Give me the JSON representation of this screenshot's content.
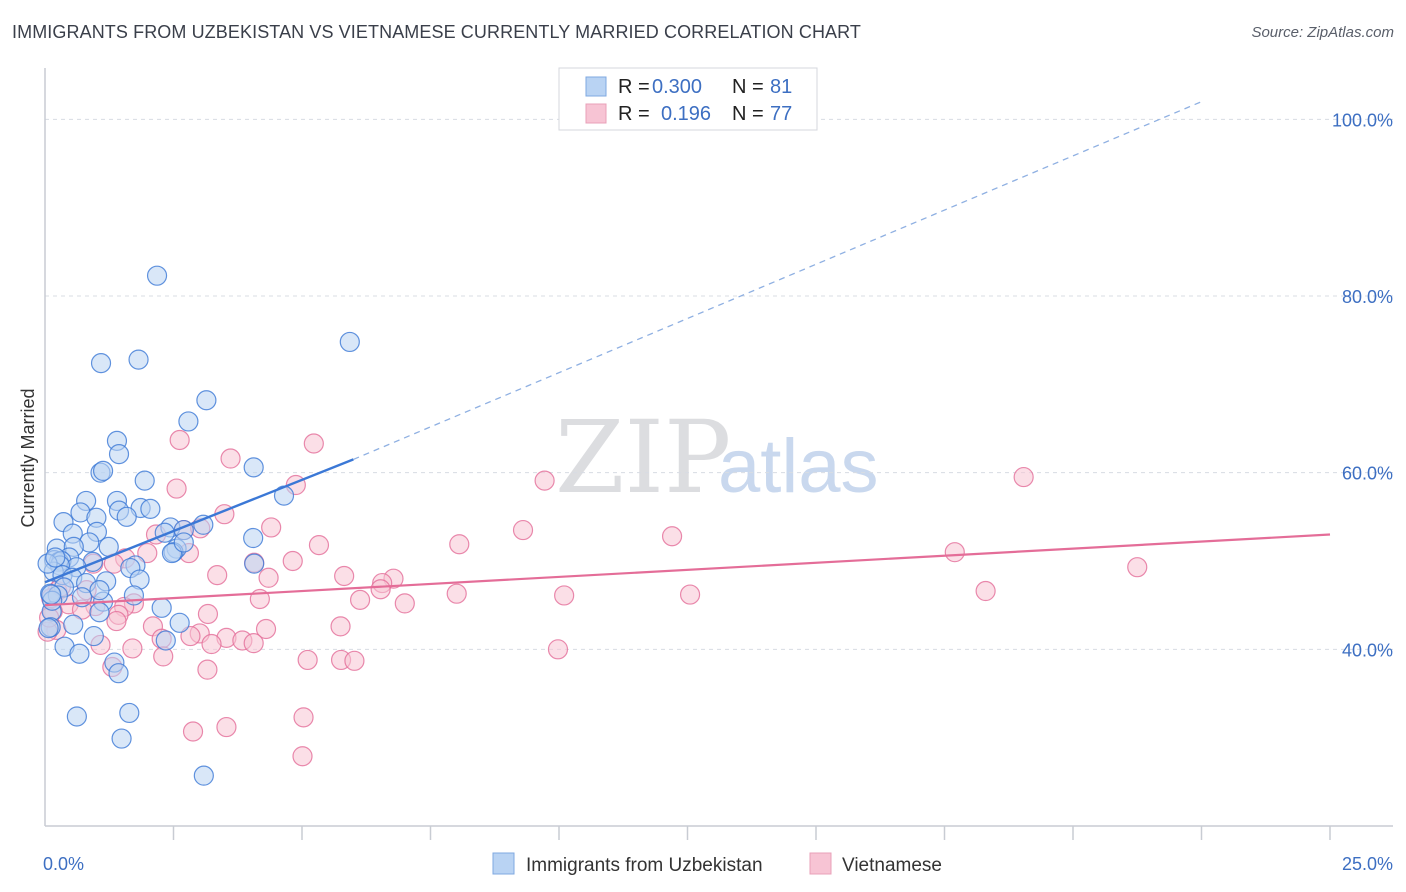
{
  "title": "IMMIGRANTS FROM UZBEKISTAN VS VIETNAMESE CURRENTLY MARRIED CORRELATION CHART",
  "source": "Source: ZipAtlas.com",
  "watermark": {
    "zip": "ZIP",
    "atlas": "atlas"
  },
  "colors": {
    "blue": "#3b78d6",
    "blue_fill": "#b9d3f3",
    "pink": "#e46d98",
    "pink_fill": "#f7c4d4",
    "axis_label": "#3d6fc2",
    "grid": "#d8dce3"
  },
  "legend": {
    "items": [
      {
        "r_label": "R =",
        "r_value": "0.300",
        "n_label": "N =",
        "n_value": "81"
      },
      {
        "r_label": "R =",
        "r_value": "0.196",
        "n_label": "N =",
        "n_value": "77"
      }
    ]
  },
  "bottom_legend": [
    "Immigrants from Uzbekistan",
    "Vietnamese"
  ],
  "chart_data": {
    "type": "scatter",
    "xlabel": "",
    "ylabel": "Currently Married",
    "xlim": [
      0,
      25
    ],
    "ylim": [
      20,
      104
    ],
    "x_tick_labels": [
      "0.0%",
      "25.0%"
    ],
    "y_ticks": [
      40,
      60,
      80,
      100
    ],
    "y_tick_labels": [
      "40.0%",
      "60.0%",
      "80.0%",
      "100.0%"
    ],
    "grid": true,
    "series": [
      {
        "name": "Immigrants from Uzbekistan",
        "color": "blue",
        "trend": {
          "x0": 0.0,
          "y0": 47.6,
          "x1": 6.0,
          "y1": 61.5,
          "dashed_to_x": 22.5,
          "dashed_to_y": 102.0
        },
        "points": [
          [
            2.18,
            82.3
          ],
          [
            5.93,
            74.8
          ],
          [
            1.09,
            72.4
          ],
          [
            1.82,
            72.8
          ],
          [
            3.14,
            68.2
          ],
          [
            2.79,
            65.8
          ],
          [
            1.4,
            63.6
          ],
          [
            1.44,
            62.1
          ],
          [
            4.06,
            60.6
          ],
          [
            1.08,
            60.0
          ],
          [
            1.13,
            60.2
          ],
          [
            1.94,
            59.1
          ],
          [
            4.65,
            57.4
          ],
          [
            0.8,
            56.8
          ],
          [
            1.4,
            56.8
          ],
          [
            1.44,
            55.7
          ],
          [
            1.86,
            56.0
          ],
          [
            2.05,
            55.9
          ],
          [
            0.69,
            55.5
          ],
          [
            1.59,
            55.0
          ],
          [
            1.0,
            54.9
          ],
          [
            0.36,
            54.4
          ],
          [
            3.08,
            54.1
          ],
          [
            2.44,
            53.8
          ],
          [
            2.7,
            53.5
          ],
          [
            0.54,
            53.1
          ],
          [
            1.01,
            53.3
          ],
          [
            2.33,
            53.2
          ],
          [
            4.05,
            52.6
          ],
          [
            0.86,
            52.1
          ],
          [
            0.23,
            51.4
          ],
          [
            0.56,
            51.6
          ],
          [
            1.24,
            51.6
          ],
          [
            2.56,
            51.4
          ],
          [
            2.5,
            51.0
          ],
          [
            2.47,
            50.9
          ],
          [
            0.47,
            50.4
          ],
          [
            0.18,
            50.1
          ],
          [
            0.27,
            49.9
          ],
          [
            0.32,
            50.0
          ],
          [
            0.93,
            49.9
          ],
          [
            4.07,
            49.7
          ],
          [
            0.61,
            49.3
          ],
          [
            1.76,
            49.5
          ],
          [
            1.66,
            49.2
          ],
          [
            0.29,
            49.5
          ],
          [
            0.17,
            48.8
          ],
          [
            0.34,
            48.4
          ],
          [
            0.53,
            48.1
          ],
          [
            0.8,
            47.5
          ],
          [
            1.19,
            47.7
          ],
          [
            1.84,
            47.9
          ],
          [
            0.37,
            47.0
          ],
          [
            0.1,
            46.3
          ],
          [
            0.25,
            46.1
          ],
          [
            1.73,
            46.1
          ],
          [
            0.72,
            45.9
          ],
          [
            1.13,
            45.4
          ],
          [
            2.27,
            44.7
          ],
          [
            0.13,
            44.3
          ],
          [
            1.06,
            44.2
          ],
          [
            0.11,
            42.5
          ],
          [
            2.62,
            43.0
          ],
          [
            0.55,
            42.8
          ],
          [
            0.95,
            41.5
          ],
          [
            0.38,
            40.3
          ],
          [
            2.35,
            41.0
          ],
          [
            0.67,
            39.5
          ],
          [
            1.35,
            38.5
          ],
          [
            1.43,
            37.3
          ],
          [
            0.62,
            32.4
          ],
          [
            1.64,
            32.8
          ],
          [
            1.49,
            29.9
          ],
          [
            3.09,
            25.7
          ],
          [
            0.07,
            42.4
          ],
          [
            0.05,
            49.7
          ],
          [
            0.14,
            45.5
          ],
          [
            0.2,
            50.4
          ],
          [
            1.06,
            46.7
          ],
          [
            2.7,
            52.1
          ],
          [
            0.12,
            46.2
          ]
        ]
      },
      {
        "name": "Vietnamese",
        "color": "pink",
        "trend": {
          "x0": 0.0,
          "y0": 45.0,
          "x1": 25.0,
          "y1": 53.0
        },
        "points": [
          [
            2.62,
            63.7
          ],
          [
            5.23,
            63.3
          ],
          [
            3.61,
            61.6
          ],
          [
            19.04,
            59.5
          ],
          [
            9.72,
            59.1
          ],
          [
            2.56,
            58.2
          ],
          [
            4.88,
            58.6
          ],
          [
            3.49,
            55.3
          ],
          [
            9.3,
            53.5
          ],
          [
            4.4,
            53.8
          ],
          [
            12.2,
            52.8
          ],
          [
            2.7,
            53.5
          ],
          [
            3.02,
            53.7
          ],
          [
            2.16,
            53.0
          ],
          [
            8.06,
            51.9
          ],
          [
            5.33,
            51.8
          ],
          [
            17.7,
            51.0
          ],
          [
            2.8,
            50.9
          ],
          [
            1.99,
            50.9
          ],
          [
            1.56,
            50.3
          ],
          [
            4.82,
            50.0
          ],
          [
            4.07,
            49.8
          ],
          [
            1.34,
            49.7
          ],
          [
            0.94,
            49.7
          ],
          [
            21.25,
            49.3
          ],
          [
            5.82,
            48.3
          ],
          [
            6.78,
            48.0
          ],
          [
            3.35,
            48.4
          ],
          [
            4.35,
            48.1
          ],
          [
            6.56,
            47.5
          ],
          [
            6.53,
            46.8
          ],
          [
            18.3,
            46.6
          ],
          [
            0.24,
            46.6
          ],
          [
            0.81,
            46.7
          ],
          [
            8.01,
            46.3
          ],
          [
            12.55,
            46.2
          ],
          [
            10.1,
            46.1
          ],
          [
            4.18,
            45.7
          ],
          [
            6.13,
            45.6
          ],
          [
            7.0,
            45.2
          ],
          [
            1.73,
            45.2
          ],
          [
            0.46,
            45.1
          ],
          [
            0.98,
            44.9
          ],
          [
            0.72,
            44.5
          ],
          [
            1.54,
            44.8
          ],
          [
            0.15,
            44.3
          ],
          [
            3.17,
            44.0
          ],
          [
            1.43,
            43.9
          ],
          [
            1.39,
            43.2
          ],
          [
            5.75,
            42.6
          ],
          [
            2.1,
            42.6
          ],
          [
            4.3,
            42.3
          ],
          [
            0.22,
            42.2
          ],
          [
            3.01,
            41.8
          ],
          [
            2.83,
            41.5
          ],
          [
            3.53,
            41.3
          ],
          [
            2.27,
            41.2
          ],
          [
            3.84,
            41.0
          ],
          [
            4.06,
            40.7
          ],
          [
            3.24,
            40.6
          ],
          [
            1.08,
            40.5
          ],
          [
            1.7,
            40.1
          ],
          [
            9.98,
            40.0
          ],
          [
            2.3,
            39.2
          ],
          [
            5.11,
            38.8
          ],
          [
            5.76,
            38.8
          ],
          [
            6.02,
            38.7
          ],
          [
            1.31,
            38.0
          ],
          [
            3.16,
            37.7
          ],
          [
            5.03,
            32.3
          ],
          [
            3.53,
            31.2
          ],
          [
            2.88,
            30.7
          ],
          [
            5.01,
            27.9
          ],
          [
            0.05,
            42.0
          ],
          [
            0.08,
            43.6
          ],
          [
            0.12,
            45.8
          ],
          [
            0.31,
            47.1
          ]
        ]
      }
    ]
  }
}
